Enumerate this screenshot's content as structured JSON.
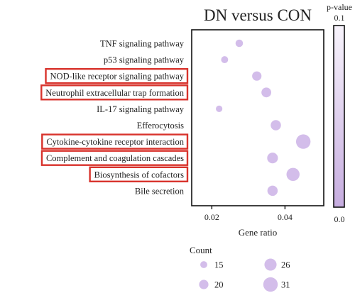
{
  "chart_data": {
    "type": "scatter",
    "title": "DN versus CON",
    "xlabel": "Gene ratio",
    "ylabel": "",
    "xlim": [
      0.0145,
      0.0506
    ],
    "x_ticks": [
      0.02,
      0.04
    ],
    "x_tick_labels": [
      "0.02",
      "0.04"
    ],
    "grid": false,
    "categories": [
      "TNF signaling pathway",
      "p53 signaling pathway",
      "NOD-like receptor signaling pathway",
      "Neutrophil extracellular trap formation",
      "IL-17 signaling pathway",
      "Efferocytosis",
      "Cytokine-cytokine receptor interaction",
      "Complement and coagulation cascades",
      "Biosynthesis of cofactors",
      "Bile secretion"
    ],
    "highlighted_categories": [
      "NOD-like receptor signaling pathway",
      "Neutrophil extracellular trap formation",
      "Cytokine-cytokine receptor interaction",
      "Complement and coagulation cascades",
      "Biosynthesis of cofactors"
    ],
    "points": [
      {
        "category": "TNF signaling pathway",
        "gene_ratio": 0.0275,
        "count": 16
      },
      {
        "category": "p53 signaling pathway",
        "gene_ratio": 0.0235,
        "count": 15
      },
      {
        "category": "NOD-like receptor signaling pathway",
        "gene_ratio": 0.0323,
        "count": 20
      },
      {
        "category": "Neutrophil extracellular trap formation",
        "gene_ratio": 0.0349,
        "count": 21
      },
      {
        "category": "IL-17 signaling pathway",
        "gene_ratio": 0.022,
        "count": 14
      },
      {
        "category": "Efferocytosis",
        "gene_ratio": 0.0375,
        "count": 22
      },
      {
        "category": "Cytokine-cytokine receptor interaction",
        "gene_ratio": 0.045,
        "count": 31
      },
      {
        "category": "Complement and coagulation cascades",
        "gene_ratio": 0.0366,
        "count": 23
      },
      {
        "category": "Biosynthesis of cofactors",
        "gene_ratio": 0.0422,
        "count": 28
      },
      {
        "category": "Bile secretion",
        "gene_ratio": 0.0366,
        "count": 22
      }
    ],
    "colorbar": {
      "label": "p-value",
      "max_label": "0.1",
      "min_label": "0.0",
      "color_low": "#c6acdf",
      "color_high": "#f8f4fc"
    },
    "size_legend": {
      "title": "Count",
      "entries": [
        {
          "label": "15",
          "count": 15
        },
        {
          "label": "26",
          "count": 26
        },
        {
          "label": "20",
          "count": 20
        },
        {
          "label": "31",
          "count": 31
        }
      ]
    },
    "point_color": "#d3bdea",
    "highlight_color": "#d8332c"
  }
}
